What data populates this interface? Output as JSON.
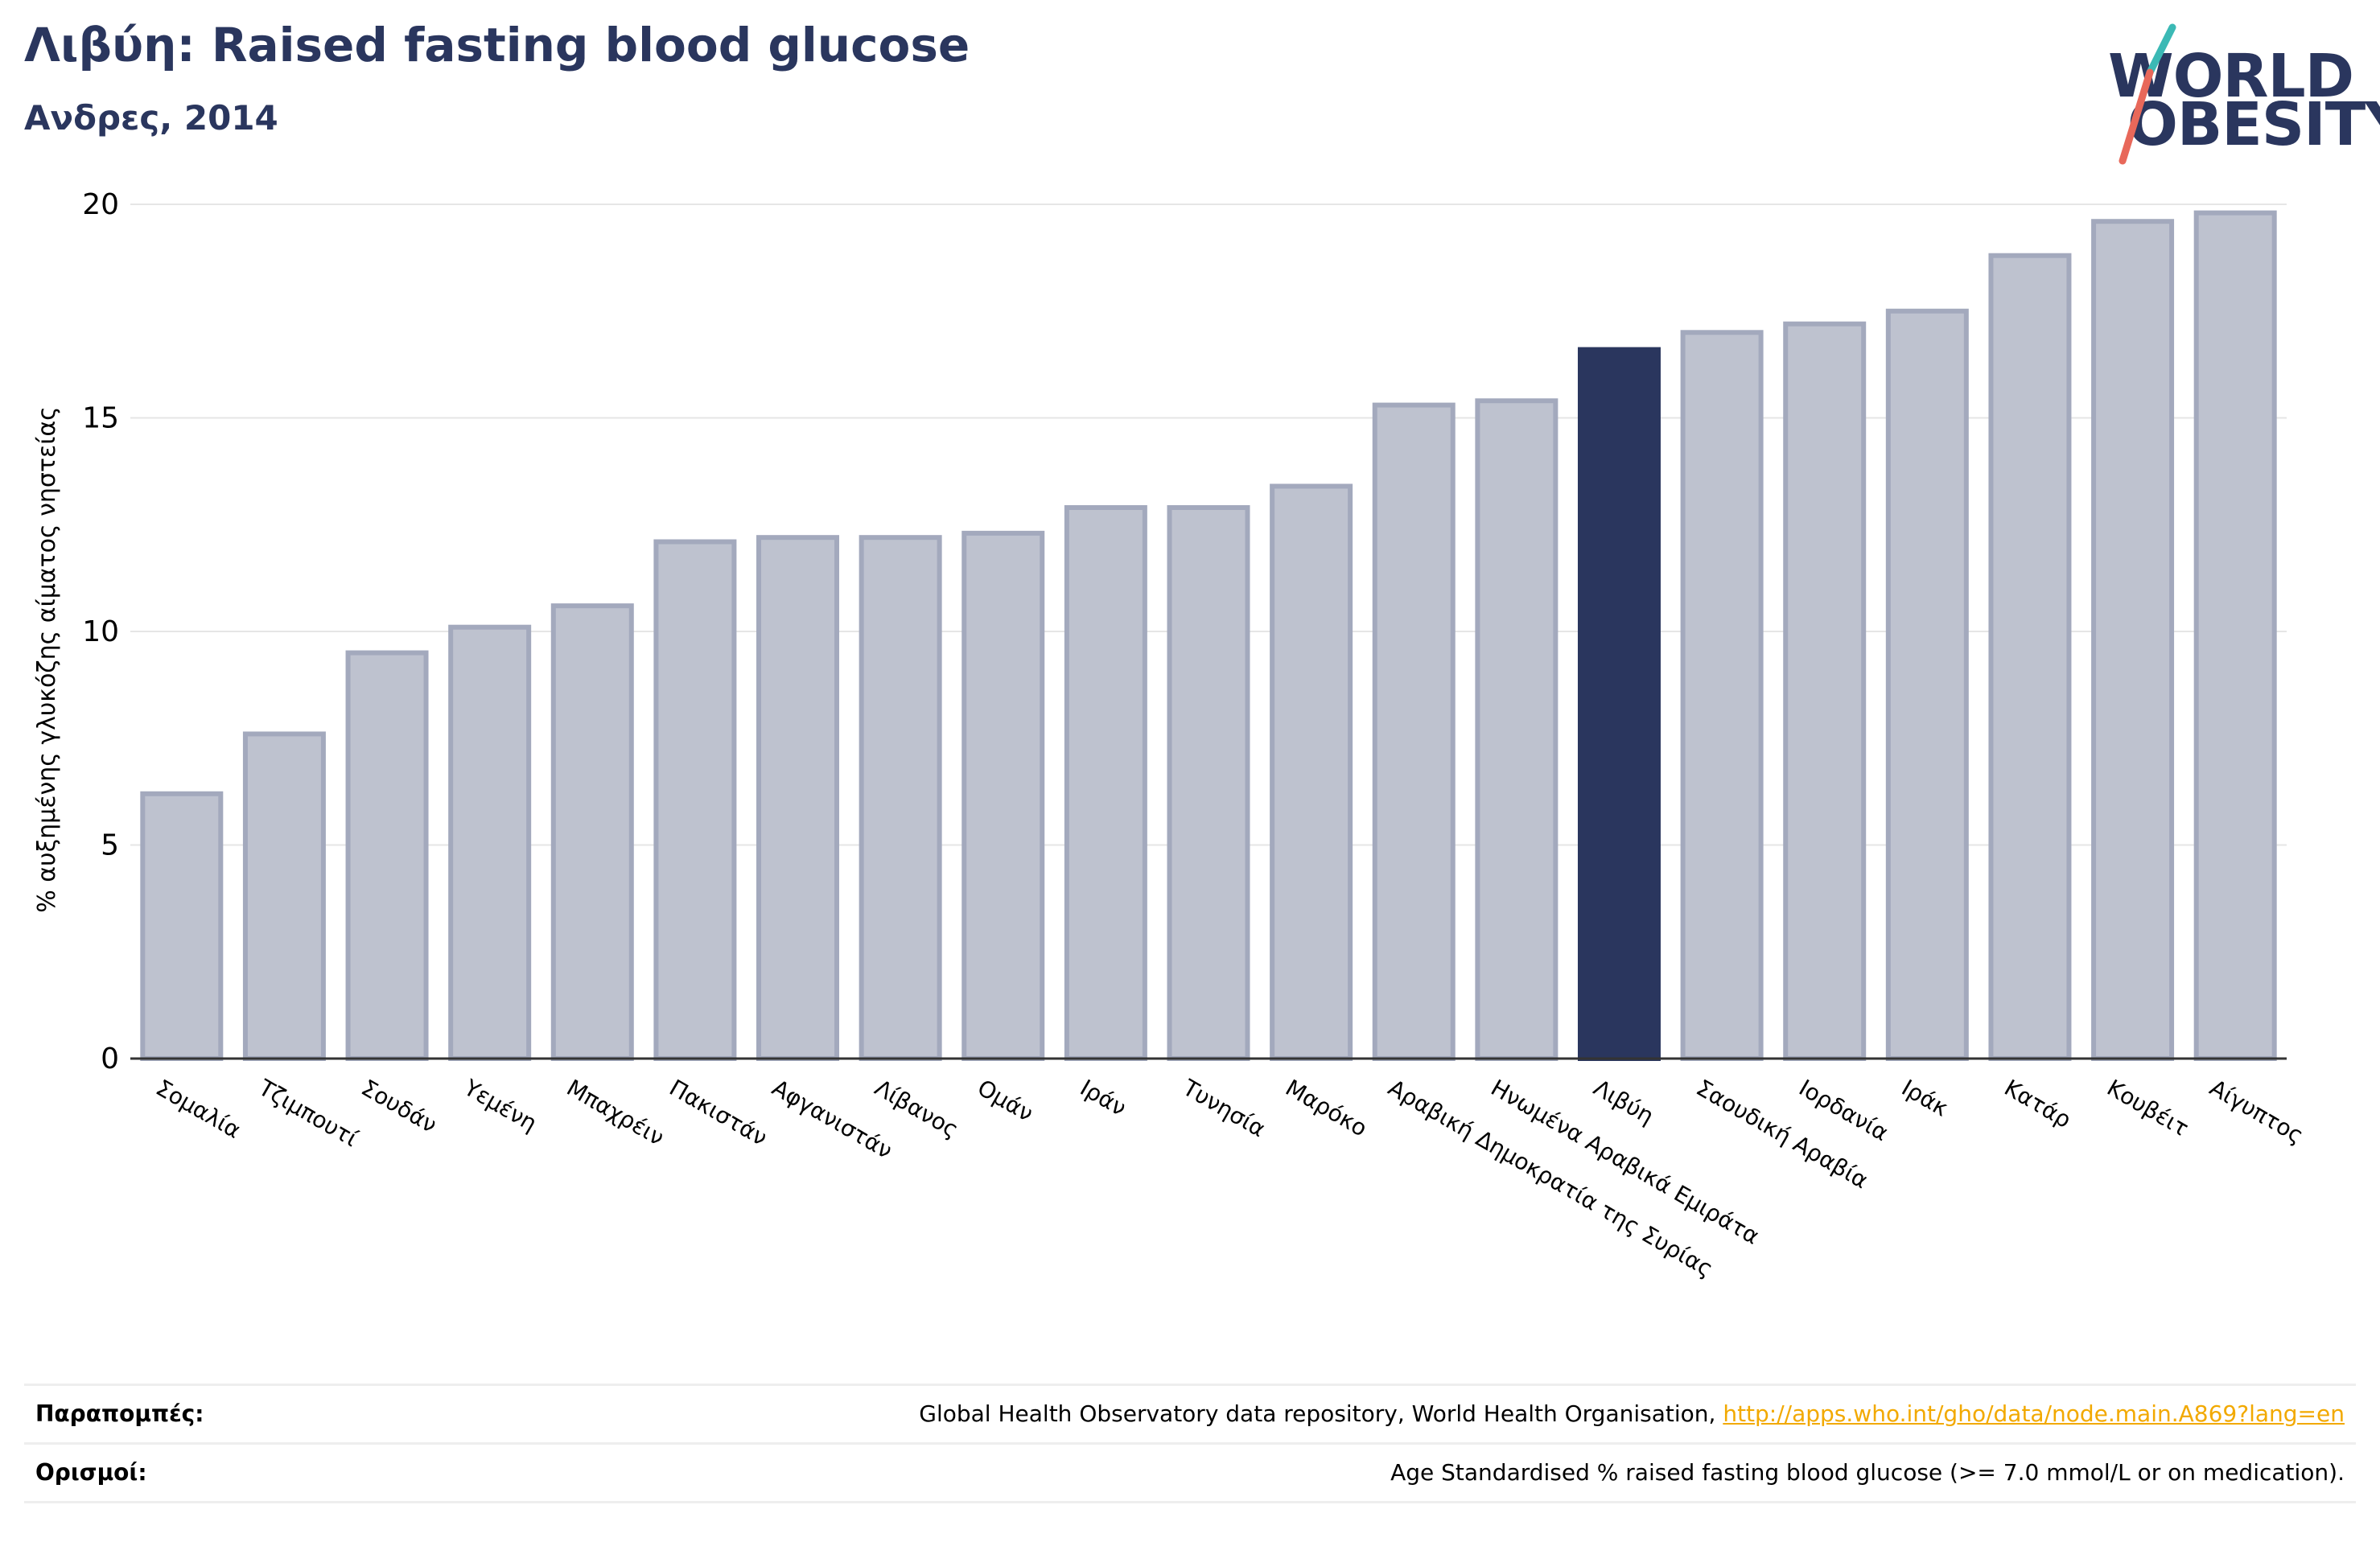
{
  "header": {
    "title": "Λιβύη: Raised fasting blood glucose",
    "subtitle": "Ανδρες, 2014"
  },
  "logo": {
    "line1": "WORLD",
    "line2": "OBESITY",
    "colors": {
      "text": "#2a365e",
      "slash_top": "#3bb9b5",
      "slash_bottom": "#e8685a"
    }
  },
  "chart_data": {
    "type": "bar",
    "title": "",
    "xlabel": "",
    "ylabel": "% αυξημένης γλυκόζης αίματος νηστείας",
    "ylim": [
      0,
      20
    ],
    "yticks": [
      0,
      5,
      10,
      15,
      20
    ],
    "grid": true,
    "highlight": "Λιβύη",
    "colors": {
      "bar": "#bec2cf",
      "bar_edge": "#a3a9bd",
      "highlight": "#2a365e"
    },
    "categories": [
      "Σομαλία",
      "Τζιμπουτί",
      "Σουδάν",
      "Υεμένη",
      "Μπαχρέιν",
      "Πακιστάν",
      "Αφγανιστάν",
      "Λίβανος",
      "Ομάν",
      "Ιράν",
      "Τυνησία",
      "Μαρόκο",
      "Αραβική Δημοκρατία της Συρίας",
      "Ηνωμένα Αραβικά Εμιράτα",
      "Λιβύη",
      "Σαουδική Αραβία",
      "Ιορδανία",
      "Ιράκ",
      "Κατάρ",
      "Κουβέιτ",
      "Αίγυπτος"
    ],
    "values": [
      6.2,
      7.6,
      9.5,
      10.1,
      10.6,
      12.1,
      12.2,
      12.2,
      12.3,
      12.9,
      12.9,
      13.4,
      15.3,
      15.4,
      16.6,
      17.0,
      17.2,
      17.5,
      18.8,
      19.6,
      19.8
    ]
  },
  "footer": {
    "references_label": "Παραπομπές:",
    "references_text": "Global Health Observatory data repository, World Health Organisation, ",
    "references_link": "http://apps.who.int/gho/data/node.main.A869?lang=en",
    "definitions_label": "Ορισμοί:",
    "definitions_text": "Age Standardised % raised fasting blood glucose (>= 7.0 mmol/L or on medication)."
  }
}
